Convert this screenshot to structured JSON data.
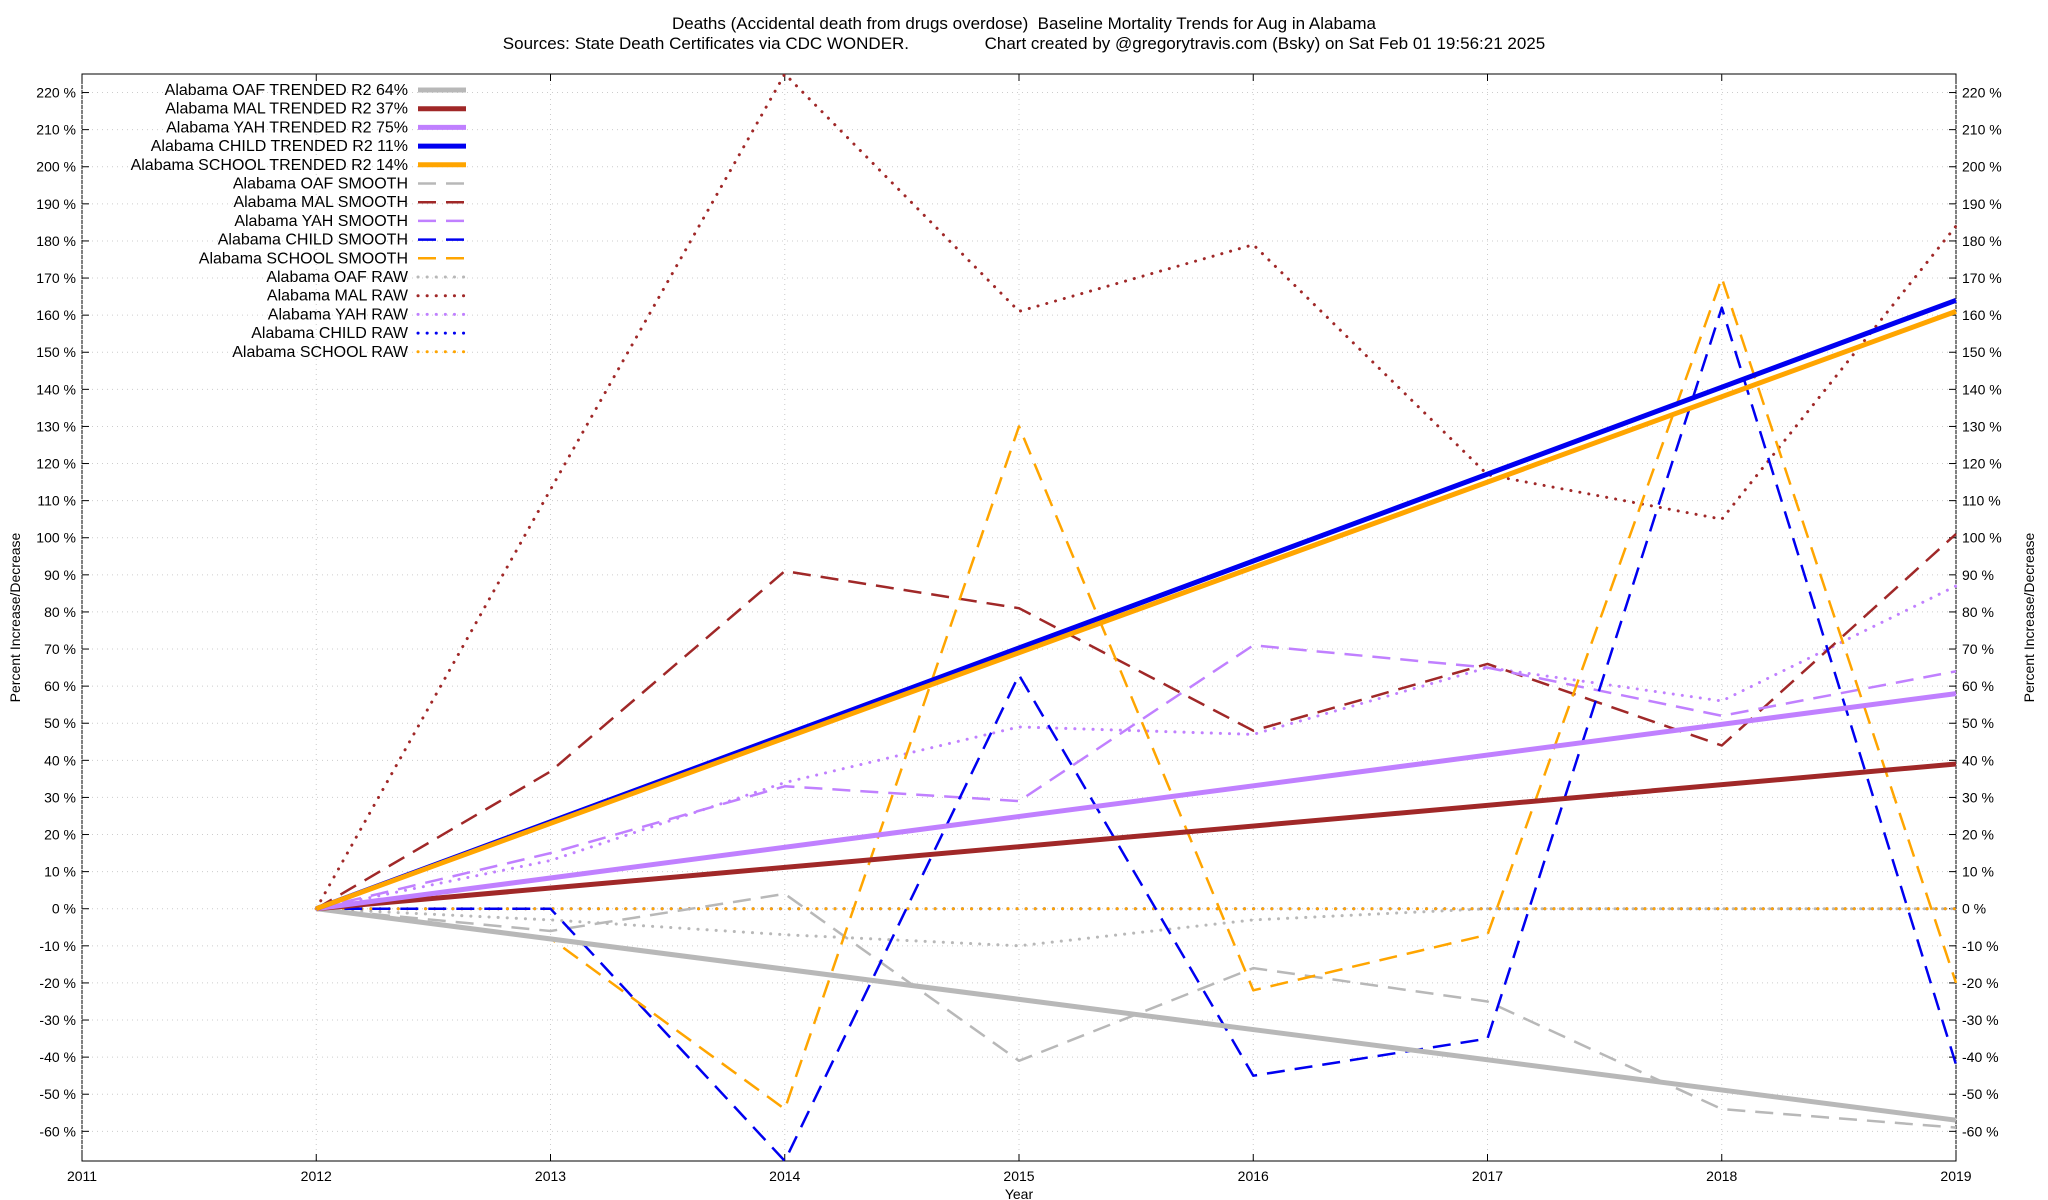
{
  "title_line1": "Deaths (Accidental death from drugs overdose)  Baseline Mortality Trends for Aug in Alabama",
  "title_line2": "Sources: State Death Certificates via CDC WONDER.                Chart created by @gregorytravis.com (Bsky) on Sat Feb 01 19:56:21 2025",
  "chart_data": {
    "type": "line",
    "xlabel": "Year",
    "ylabel": "Percent Increase/Decrease",
    "xlim": [
      2011,
      2019
    ],
    "ylim": [
      -68,
      225
    ],
    "x_ticks": [
      2011,
      2012,
      2013,
      2014,
      2015,
      2016,
      2017,
      2018,
      2019
    ],
    "y_ticks": [
      -60,
      -50,
      -40,
      -30,
      -20,
      -10,
      0,
      10,
      20,
      30,
      40,
      50,
      60,
      70,
      80,
      90,
      100,
      110,
      120,
      130,
      140,
      150,
      160,
      170,
      180,
      190,
      200,
      210,
      220
    ],
    "y_tick_suffix": " %",
    "grid": true,
    "legend_position": "top-left",
    "colors": {
      "OAF": "#b8b8b8",
      "MAL": "#a02828",
      "YAH": "#c080ff",
      "CHILD": "#0000f0",
      "SCHOOL": "#ffa500"
    },
    "series": [
      {
        "name": "Alabama OAF TRENDED R2  64%",
        "group": "OAF",
        "style": "trended",
        "x": [
          2012,
          2019
        ],
        "y": [
          0,
          -57
        ]
      },
      {
        "name": "Alabama MAL TRENDED R2  37%",
        "group": "MAL",
        "style": "trended",
        "x": [
          2012,
          2019
        ],
        "y": [
          0,
          39
        ]
      },
      {
        "name": "Alabama YAH TRENDED R2  75%",
        "group": "YAH",
        "style": "trended",
        "x": [
          2012,
          2019
        ],
        "y": [
          0,
          58
        ]
      },
      {
        "name": "Alabama CHILD TRENDED R2  11%",
        "group": "CHILD",
        "style": "trended",
        "x": [
          2012,
          2019
        ],
        "y": [
          0,
          164
        ]
      },
      {
        "name": "Alabama SCHOOL TRENDED R2  14%",
        "group": "SCHOOL",
        "style": "trended",
        "x": [
          2012,
          2019
        ],
        "y": [
          0,
          161
        ]
      },
      {
        "name": "Alabama OAF SMOOTH",
        "group": "OAF",
        "style": "smooth",
        "x": [
          2012,
          2013,
          2014,
          2015,
          2016,
          2017,
          2018,
          2019
        ],
        "y": [
          0,
          -6,
          4,
          -41,
          -16,
          -25,
          -54,
          -59
        ]
      },
      {
        "name": "Alabama MAL SMOOTH",
        "group": "MAL",
        "style": "smooth",
        "x": [
          2012,
          2013,
          2014,
          2015,
          2016,
          2017,
          2018,
          2019
        ],
        "y": [
          0,
          37,
          91,
          81,
          48,
          66,
          44,
          101
        ]
      },
      {
        "name": "Alabama YAH SMOOTH",
        "group": "YAH",
        "style": "smooth",
        "x": [
          2012,
          2013,
          2014,
          2015,
          2016,
          2017,
          2018,
          2019
        ],
        "y": [
          0,
          15,
          33,
          29,
          71,
          65,
          52,
          64
        ]
      },
      {
        "name": "Alabama CHILD SMOOTH",
        "group": "CHILD",
        "style": "smooth",
        "x": [
          2012,
          2013,
          2014,
          2015,
          2016,
          2017,
          2018,
          2019
        ],
        "y": [
          0,
          0,
          -68,
          63,
          -45,
          -35,
          162,
          -42
        ]
      },
      {
        "name": "Alabama SCHOOL SMOOTH",
        "group": "SCHOOL",
        "style": "smooth",
        "x": [
          2012,
          2013,
          2014,
          2015,
          2016,
          2017,
          2018,
          2019
        ],
        "y": [
          0,
          -8,
          -54,
          130,
          -22,
          -7,
          170,
          -20
        ]
      },
      {
        "name": "Alabama OAF RAW",
        "group": "OAF",
        "style": "raw",
        "x": [
          2012,
          2013,
          2014,
          2015,
          2016,
          2017,
          2018,
          2019
        ],
        "y": [
          0,
          -3,
          -7,
          -10,
          -3,
          0,
          0,
          0
        ]
      },
      {
        "name": "Alabama MAL RAW",
        "group": "MAL",
        "style": "raw",
        "x": [
          2012,
          2013,
          2014,
          2015,
          2016,
          2017,
          2018,
          2019
        ],
        "y": [
          0,
          113,
          225,
          161,
          179,
          117,
          105,
          184
        ]
      },
      {
        "name": "Alabama YAH RAW",
        "group": "YAH",
        "style": "raw",
        "x": [
          2012,
          2013,
          2014,
          2015,
          2016,
          2017,
          2018,
          2019
        ],
        "y": [
          0,
          13,
          34,
          49,
          47,
          65,
          56,
          87
        ]
      },
      {
        "name": "Alabama CHILD RAW",
        "group": "CHILD",
        "style": "raw",
        "x": [
          2012,
          2013,
          2014,
          2015,
          2016,
          2017,
          2018,
          2019
        ],
        "y": [
          0,
          0,
          0,
          0,
          0,
          0,
          0,
          0
        ]
      },
      {
        "name": "Alabama SCHOOL RAW",
        "group": "SCHOOL",
        "style": "raw",
        "x": [
          2012,
          2019
        ],
        "y": [
          0,
          0
        ]
      }
    ]
  }
}
